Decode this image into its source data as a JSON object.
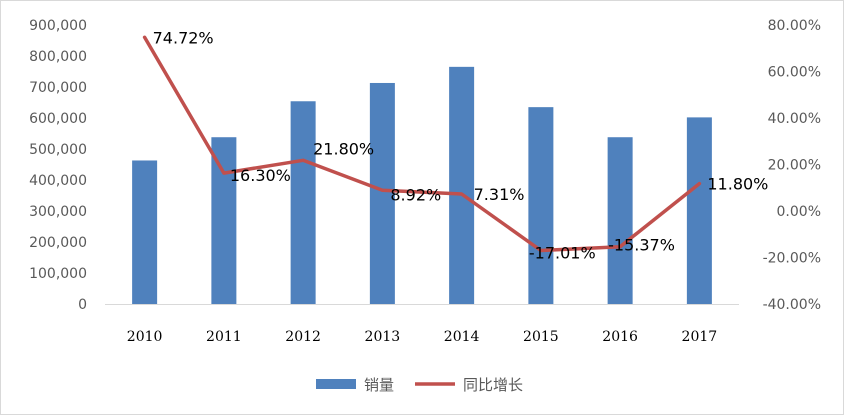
{
  "chart_data": {
    "type": "bar",
    "categories": [
      "2010",
      "2011",
      "2012",
      "2013",
      "2014",
      "2015",
      "2016",
      "2017"
    ],
    "series": [
      {
        "name": "销量",
        "type": "bar",
        "axis": "left",
        "color": "#4f81bd",
        "values": [
          463000,
          538000,
          654000,
          713000,
          765000,
          635000,
          538000,
          602000
        ]
      },
      {
        "name": "同比增长",
        "type": "line",
        "axis": "right",
        "color": "#c0504d",
        "values": [
          74.72,
          16.3,
          21.8,
          8.92,
          7.31,
          -17.01,
          -15.37,
          11.8
        ],
        "labels": [
          "74.72%",
          "16.30%",
          "21.80%",
          "8.92%",
          "7.31%",
          "-17.01%",
          "-15.37%",
          "11.80%"
        ]
      }
    ],
    "y_left": {
      "range": [
        0,
        900000
      ],
      "ticks": [
        0,
        100000,
        200000,
        300000,
        400000,
        500000,
        600000,
        700000,
        800000,
        900000
      ],
      "tick_labels": [
        "0",
        "100,000",
        "200,000",
        "300,000",
        "400,000",
        "500,000",
        "600,000",
        "700,000",
        "800,000",
        "900,000"
      ]
    },
    "y_right": {
      "range": [
        -40,
        80
      ],
      "ticks": [
        -40,
        -20,
        0,
        20,
        40,
        60,
        80
      ],
      "tick_labels": [
        "-40.00%",
        "-20.00%",
        "0.00%",
        "20.00%",
        "40.00%",
        "60.00%",
        "80.00%"
      ]
    },
    "grid": false,
    "legend": {
      "position": "bottom"
    }
  }
}
